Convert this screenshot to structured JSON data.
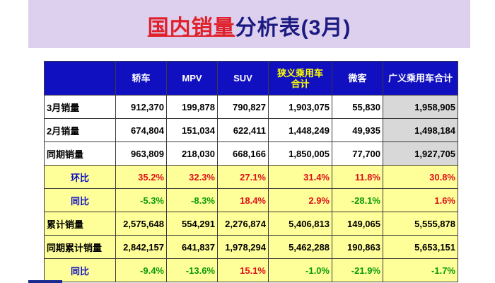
{
  "title": {
    "highlight": "国内销量",
    "rest": "分析表(3月)"
  },
  "columns": [
    "",
    "轿车",
    "MPV",
    "SUV",
    "狭义乘用车\n合计",
    "微客",
    "广义乘用车合计"
  ],
  "rows": [
    {
      "label": "3月销量",
      "style": "white",
      "kind": "value",
      "values": [
        "912,370",
        "199,878",
        "790,827",
        "1,903,075",
        "55,830",
        "1,958,905"
      ]
    },
    {
      "label": "2月销量",
      "style": "white",
      "kind": "value",
      "values": [
        "674,804",
        "151,034",
        "622,411",
        "1,448,249",
        "49,935",
        "1,498,184"
      ]
    },
    {
      "label": "同期销量",
      "style": "white",
      "kind": "value",
      "values": [
        "963,809",
        "218,030",
        "668,166",
        "1,850,005",
        "77,700",
        "1,927,705"
      ]
    },
    {
      "label": "环比",
      "style": "yellow",
      "kind": "pct",
      "values": [
        "35.2%",
        "32.3%",
        "27.1%",
        "31.4%",
        "11.8%",
        "30.8%"
      ]
    },
    {
      "label": "同比",
      "style": "yellow",
      "kind": "pct",
      "values": [
        "-5.3%",
        "-8.3%",
        "18.4%",
        "2.9%",
        "-28.1%",
        "1.6%"
      ]
    },
    {
      "label": "累计销量",
      "style": "yellow",
      "kind": "value",
      "values": [
        "2,575,648",
        "554,291",
        "2,276,874",
        "5,406,813",
        "149,065",
        "5,555,878"
      ]
    },
    {
      "label": "同期累计销量",
      "style": "yellow",
      "kind": "value",
      "values": [
        "2,842,157",
        "641,837",
        "1,978,294",
        "5,462,288",
        "190,863",
        "5,653,151"
      ]
    },
    {
      "label": "同比",
      "style": "yellow",
      "kind": "pct",
      "values": [
        "-9.4%",
        "-13.6%",
        "15.1%",
        "-1.0%",
        "-21.9%",
        "-1.7%"
      ]
    }
  ]
}
